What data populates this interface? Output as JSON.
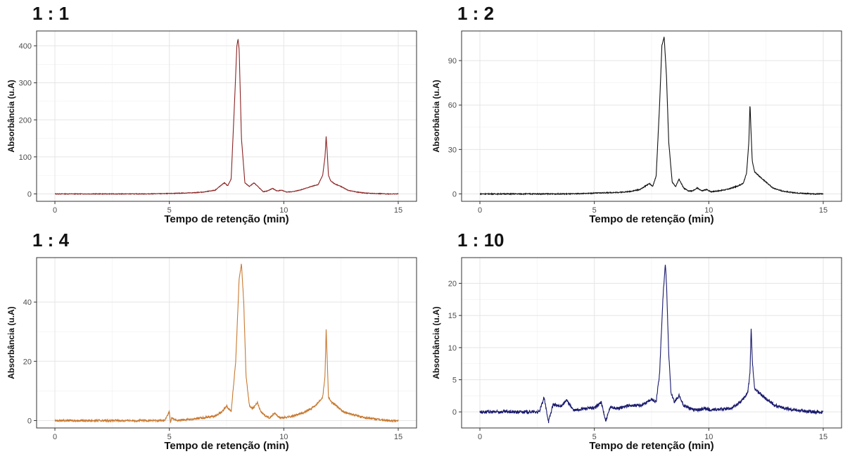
{
  "chart_data": [
    {
      "type": "line",
      "title": "1 : 1",
      "xlabel": "Tempo de retenção (min)",
      "ylabel": "Absorbância (u.A)",
      "xlim": [
        -0.8,
        15.8
      ],
      "ylim": [
        -20,
        440
      ],
      "xticks": [
        0,
        5,
        10,
        15
      ],
      "yticks": [
        0,
        100,
        200,
        300,
        400
      ],
      "grid": true,
      "color": "#8b2323",
      "noise": 0.8,
      "series": [
        {
          "x": [
            0.0,
            0.5,
            1.0,
            2.0,
            3.0,
            4.0,
            5.0,
            5.5,
            6.0,
            6.5,
            7.0,
            7.2,
            7.4,
            7.55,
            7.7,
            7.85,
            7.95,
            8.0,
            8.05,
            8.15,
            8.3,
            8.5,
            8.7,
            8.9,
            9.1,
            9.3,
            9.5,
            9.7,
            9.9,
            10.1,
            10.4,
            10.8,
            11.2,
            11.5,
            11.7,
            11.8,
            11.85,
            11.9,
            11.95,
            12.05,
            12.2,
            12.5,
            12.8,
            13.2,
            13.6,
            14.0,
            14.5,
            15.0
          ],
          "y": [
            0,
            0,
            0,
            0,
            0,
            0,
            1,
            2,
            3,
            5,
            10,
            20,
            30,
            22,
            40,
            250,
            400,
            418,
            390,
            150,
            30,
            20,
            30,
            18,
            6,
            8,
            15,
            8,
            10,
            5,
            6,
            12,
            20,
            25,
            50,
            100,
            155,
            110,
            50,
            35,
            28,
            20,
            10,
            5,
            2,
            1,
            0,
            0
          ]
        }
      ]
    },
    {
      "type": "line",
      "title": "1 : 2",
      "xlabel": "Tempo de retenção (min)",
      "ylabel": "Absorbância (u.A)",
      "xlim": [
        -0.8,
        15.8
      ],
      "ylim": [
        -5,
        110
      ],
      "xticks": [
        0,
        5,
        10,
        15
      ],
      "yticks": [
        0,
        30,
        60,
        90
      ],
      "grid": true,
      "color": "#111111",
      "noise": 0.3,
      "series": [
        {
          "x": [
            0.0,
            0.5,
            1.0,
            2.0,
            3.0,
            4.0,
            5.0,
            5.5,
            6.0,
            6.5,
            7.0,
            7.2,
            7.4,
            7.55,
            7.7,
            7.85,
            7.95,
            8.05,
            8.15,
            8.25,
            8.4,
            8.55,
            8.7,
            8.9,
            9.1,
            9.3,
            9.5,
            9.7,
            9.9,
            10.1,
            10.4,
            10.8,
            11.2,
            11.5,
            11.65,
            11.75,
            11.8,
            11.85,
            11.9,
            12.0,
            12.2,
            12.5,
            12.8,
            13.2,
            13.6,
            14.0,
            14.5,
            15.0
          ],
          "y": [
            0,
            0,
            0,
            0,
            0,
            0,
            0.5,
            0.8,
            1,
            1.5,
            3,
            5,
            7,
            5,
            12,
            60,
            100,
            106,
            80,
            35,
            8,
            5,
            10,
            4,
            2,
            2,
            4,
            2,
            3,
            1.5,
            2,
            3,
            5,
            7,
            14,
            35,
            61,
            40,
            22,
            15,
            12,
            8,
            4,
            2,
            1,
            0.5,
            0,
            0
          ]
        }
      ]
    },
    {
      "type": "line",
      "title": "1 : 4",
      "xlabel": "Tempo de retenção (min)",
      "ylabel": "Absorbância (u.A)",
      "xlim": [
        -0.8,
        15.8
      ],
      "ylim": [
        -2.5,
        55
      ],
      "xticks": [
        0,
        5,
        10,
        15
      ],
      "yticks": [
        0,
        20,
        40
      ],
      "grid": true,
      "color": "#c87a32",
      "noise": 0.35,
      "series": [
        {
          "x": [
            0.0,
            1.0,
            2.0,
            3.0,
            4.0,
            4.8,
            5.0,
            5.05,
            5.1,
            5.3,
            6.0,
            6.5,
            7.0,
            7.3,
            7.5,
            7.7,
            7.9,
            8.05,
            8.15,
            8.25,
            8.35,
            8.5,
            8.65,
            8.85,
            9.0,
            9.2,
            9.4,
            9.6,
            9.8,
            10.0,
            10.4,
            10.8,
            11.2,
            11.5,
            11.7,
            11.8,
            11.85,
            11.9,
            11.95,
            12.1,
            12.3,
            12.6,
            13.0,
            13.5,
            14.0,
            14.5,
            15.0
          ],
          "y": [
            0,
            0,
            0,
            0,
            0,
            0,
            3,
            -1,
            1,
            0,
            0.5,
            1,
            1.5,
            3,
            5,
            3,
            20,
            48,
            53,
            40,
            15,
            5,
            4,
            6,
            3,
            1.5,
            1,
            2.5,
            1,
            1,
            1.5,
            2.5,
            4,
            6,
            8,
            15,
            31,
            20,
            8,
            6,
            5,
            3,
            2,
            1,
            0.5,
            0,
            0
          ]
        }
      ]
    },
    {
      "type": "line",
      "title": "1 : 10",
      "xlabel": "Tempo de retenção (min)",
      "ylabel": "Absorbância (u.A)",
      "xlim": [
        -0.8,
        15.8
      ],
      "ylim": [
        -2.5,
        24
      ],
      "xticks": [
        0,
        5,
        10,
        15
      ],
      "yticks": [
        0,
        5,
        10,
        15,
        20
      ],
      "grid": true,
      "color": "#1a1a6e",
      "noise": 0.25,
      "series": [
        {
          "x": [
            0.0,
            1.0,
            2.0,
            2.6,
            2.8,
            3.0,
            3.2,
            3.5,
            3.8,
            4.1,
            4.5,
            5.0,
            5.3,
            5.5,
            5.7,
            6.0,
            6.5,
            7.0,
            7.3,
            7.5,
            7.7,
            7.85,
            8.0,
            8.1,
            8.15,
            8.25,
            8.35,
            8.5,
            8.7,
            8.9,
            9.2,
            9.5,
            9.8,
            10.1,
            10.5,
            10.9,
            11.2,
            11.5,
            11.7,
            11.8,
            11.85,
            11.9,
            12.0,
            12.2,
            12.5,
            12.9,
            13.4,
            14.0,
            14.5,
            15.0
          ],
          "y": [
            0,
            0,
            0,
            0,
            2.2,
            -1.5,
            1.2,
            0.8,
            1.8,
            0.2,
            0.5,
            0.6,
            1.5,
            -1.5,
            0.8,
            0.5,
            1,
            1,
            1.5,
            2,
            1.5,
            6,
            18,
            23,
            20,
            9,
            3,
            1.5,
            2.5,
            1,
            0.5,
            0.3,
            0.5,
            0.3,
            0.4,
            0.5,
            1,
            2,
            3,
            6,
            13,
            8,
            3.5,
            3,
            2,
            1,
            0.5,
            0.2,
            0,
            0
          ]
        }
      ]
    }
  ]
}
